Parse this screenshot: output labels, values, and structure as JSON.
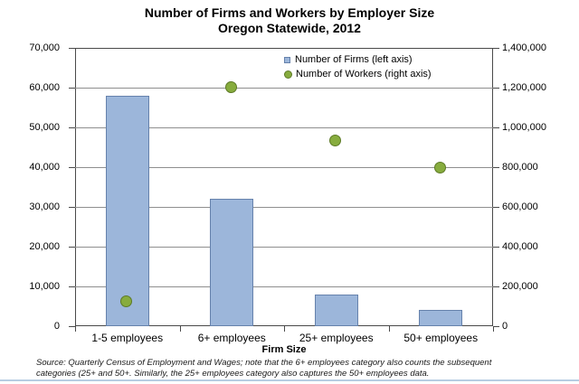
{
  "chart_data": {
    "type": "combo",
    "title": "Number of Firms and Workers by Employer Size",
    "subtitle": "Oregon Statewide, 2012",
    "categories": [
      "1-5 employees",
      "6+ employees",
      "25+ employees",
      "50+ employees"
    ],
    "series": [
      {
        "name": "Number of Firms (left axis)",
        "chart_type": "bar",
        "axis": "left",
        "values": [
          58000,
          32000,
          8000,
          4000
        ],
        "fill": "#9cb6da",
        "border": "#6682ac"
      },
      {
        "name": "Number of Workers (right axis)",
        "chart_type": "scatter",
        "axis": "right",
        "values": [
          120000,
          1200000,
          930000,
          795000
        ],
        "fill": "#87ac3e",
        "border": "#5d7a26"
      }
    ],
    "xlabel": "Firm Size",
    "left_axis": {
      "min": 0,
      "max": 70000,
      "step": 10000,
      "tick_labels": [
        "0",
        "10,000",
        "20,000",
        "30,000",
        "40,000",
        "50,000",
        "60,000",
        "70,000"
      ]
    },
    "right_axis": {
      "min": 0,
      "max": 1400000,
      "step": 200000,
      "tick_labels": [
        "0",
        "200,000",
        "400,000",
        "600,000",
        "800,000",
        "1,000,000",
        "1,200,000",
        "1,400,000"
      ]
    },
    "grid": true,
    "legend_position": "top-right-inside",
    "gridline_color": "#8f8f8f",
    "plot_border_color": "#4a4a4a"
  },
  "source_note": {
    "line1": "Source: Quarterly Census of Employment and Wages; note that the 6+ employees category also counts the subsequent",
    "line2": "categories (25+ and 50+. Similarly, the 25+ employees  category also captures the 50+ employees data."
  }
}
